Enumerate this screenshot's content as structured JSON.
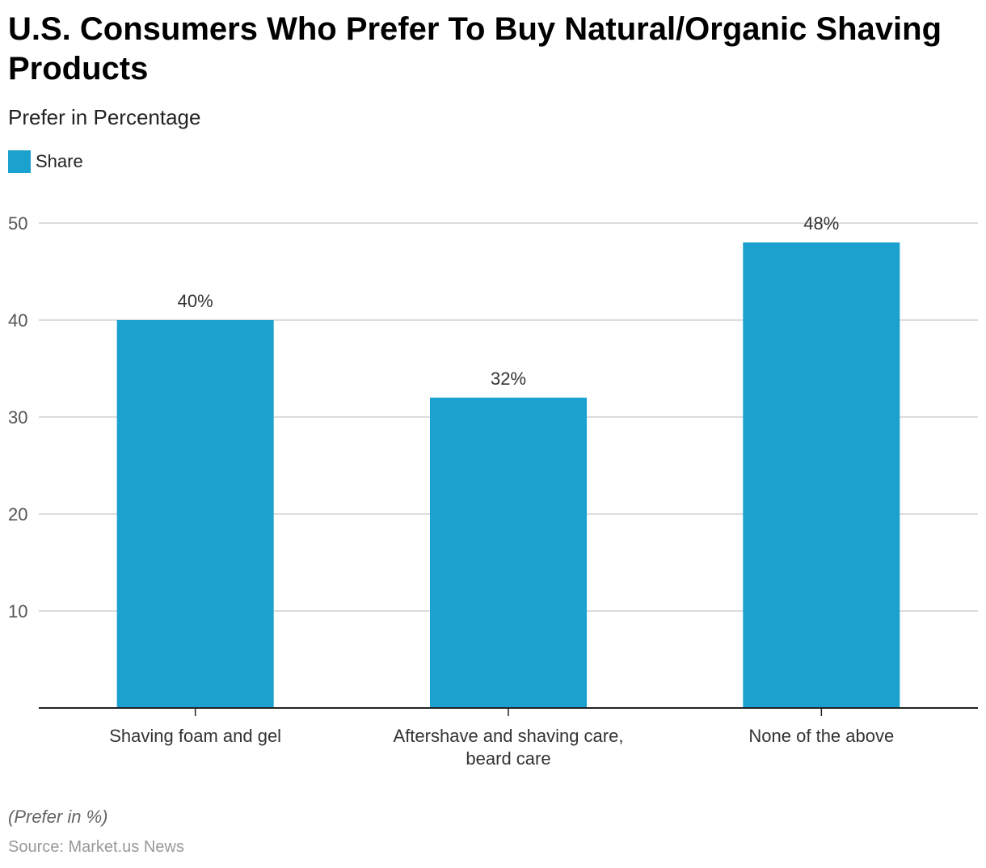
{
  "chart_data": {
    "type": "bar",
    "title": "U.S. Consumers Who Prefer To Buy Natural/Organic Shaving Products",
    "subtitle": "Prefer in Percentage",
    "legend": [
      "Share"
    ],
    "categories": [
      [
        "Shaving foam and gel"
      ],
      [
        "Aftershave and shaving care,",
        "beard care"
      ],
      [
        "None of the above"
      ]
    ],
    "values": [
      40,
      32,
      48
    ],
    "labels": [
      "40%",
      "32%",
      "48%"
    ],
    "yticks": [
      10,
      20,
      30,
      40,
      50
    ],
    "ylim": [
      0,
      50
    ],
    "color": "#1aa1ce",
    "grid": true,
    "legend_position": "top-left"
  },
  "note": "(Prefer in %)",
  "source": "Source: Market.us News"
}
